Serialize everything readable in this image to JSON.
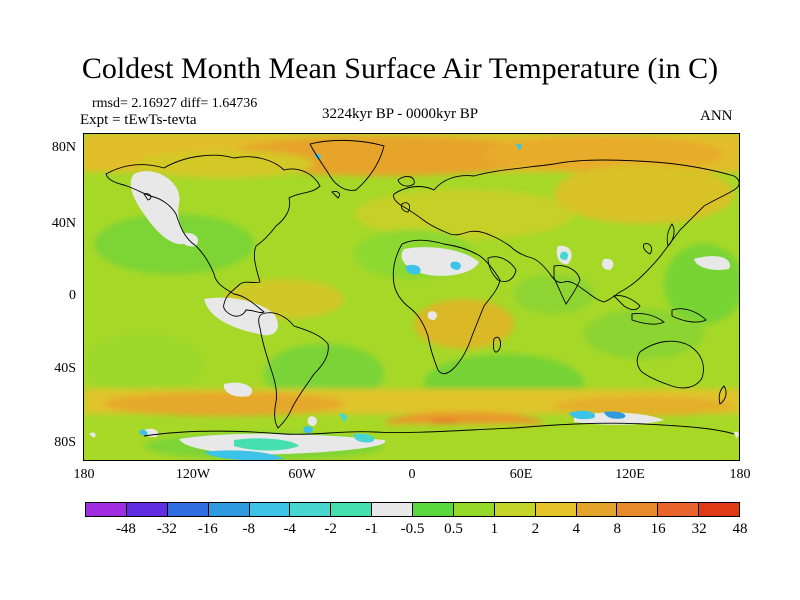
{
  "figure": {
    "title": "Coldest Month Mean Surface Air Temperature (in C)",
    "stats": "rmsd= 2.16927 diff= 1.64736",
    "expt": "Expt = tEwTs-tevta",
    "period": "3224kyr BP - 0000kyr BP",
    "season": "ANN"
  },
  "axes": {
    "lat_labels": [
      "80N",
      "40N",
      "0",
      "40S",
      "80S"
    ],
    "lon_labels": [
      "180",
      "120W",
      "60W",
      "0",
      "60E",
      "120E",
      "180"
    ]
  },
  "colorbar": {
    "colors": [
      "#a02ee0",
      "#5e2ee0",
      "#2e6ee0",
      "#2e9ae0",
      "#3ec3e8",
      "#4ad6d0",
      "#46e0b0",
      "#e8e8e8",
      "#58d83c",
      "#94d828",
      "#c4d428",
      "#e4c428",
      "#e4a42c",
      "#e88a2c",
      "#e8642c",
      "#e03a14"
    ],
    "labels": [
      "-48",
      "-32",
      "-16",
      "-8",
      "-4",
      "-2",
      "-1",
      "-0.5",
      "0.5",
      "1",
      "2",
      "4",
      "8",
      "16",
      "32",
      "48"
    ]
  }
}
